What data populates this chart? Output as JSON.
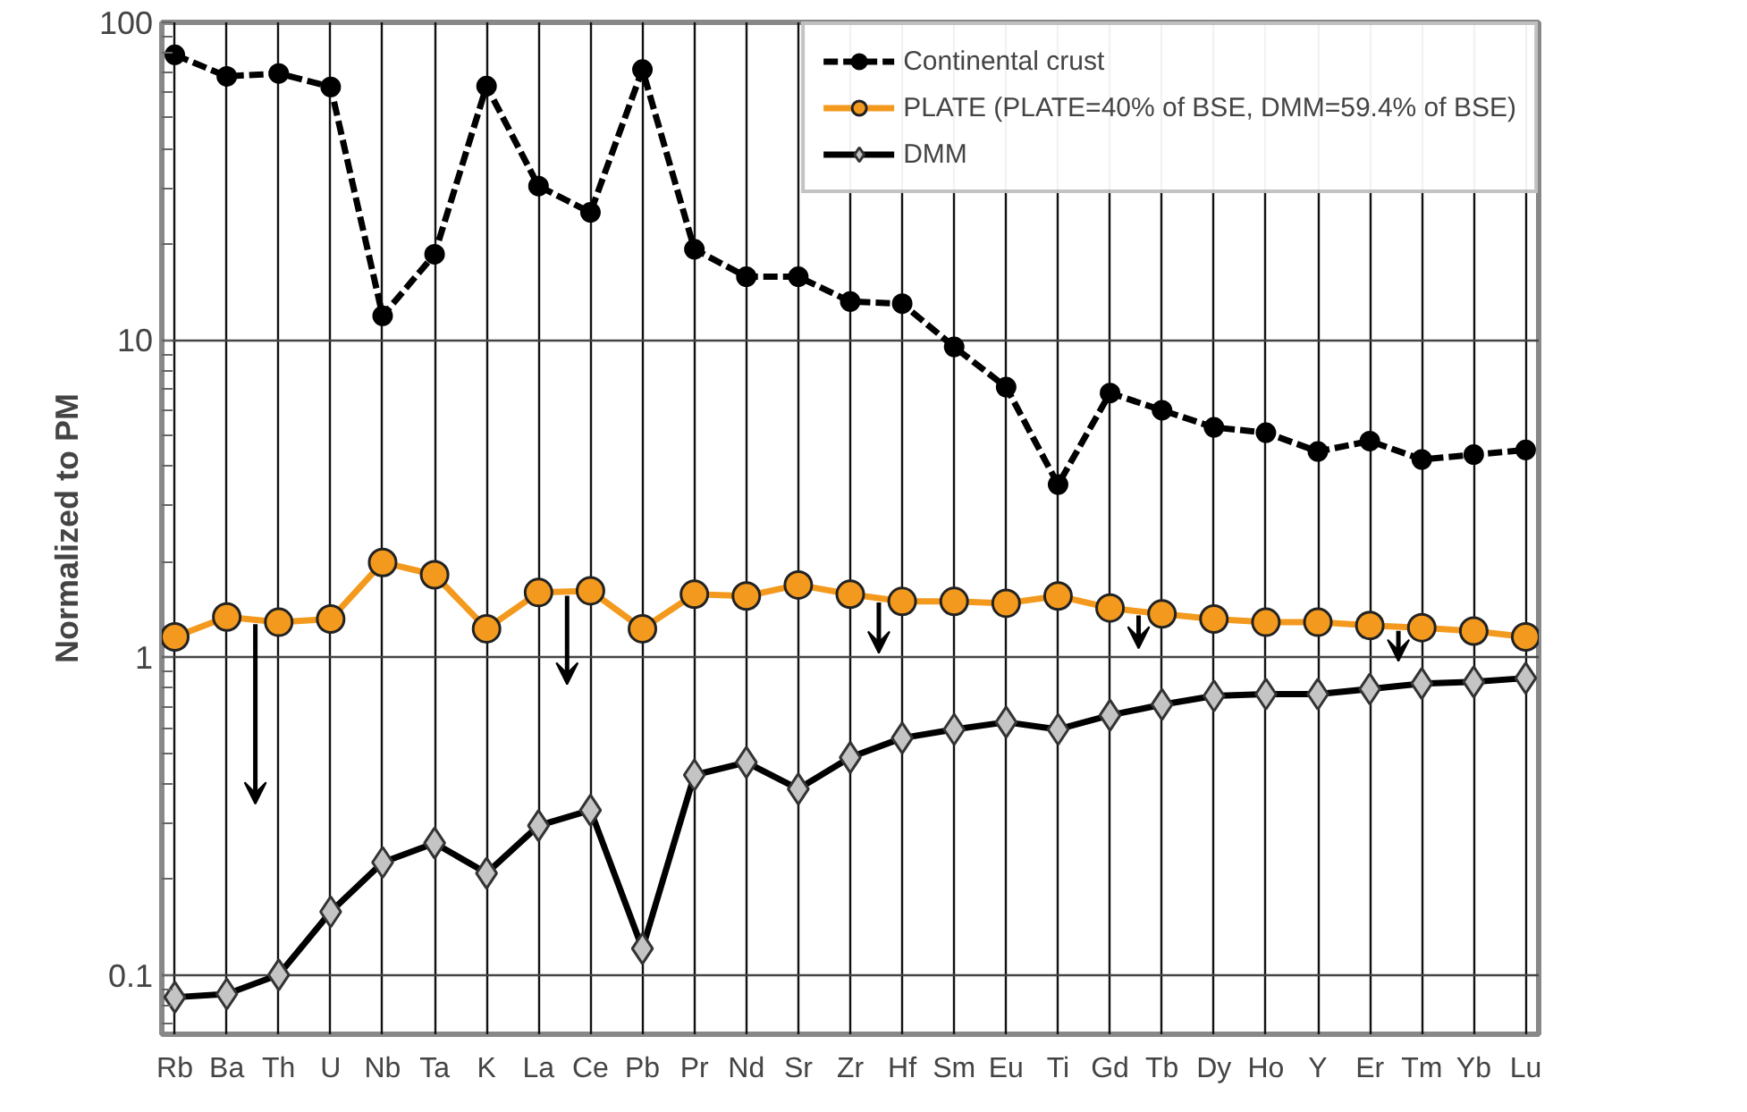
{
  "chart_data": {
    "type": "line",
    "ylabel": "Normalized to PM",
    "categories": [
      "Rb",
      "Ba",
      "Th",
      "U",
      "Nb",
      "Ta",
      "K",
      "La",
      "Ce",
      "Pb",
      "Pr",
      "Nd",
      "Sr",
      "Zr",
      "Hf",
      "Sm",
      "Eu",
      "Ti",
      "Gd",
      "Tb",
      "Dy",
      "Ho",
      "Y",
      "Er",
      "Tm",
      "Yb",
      "Lu"
    ],
    "series": [
      {
        "name": "Continental crust",
        "color": "#000000",
        "marker": "circle",
        "line_style": "dashed",
        "values": [
          79,
          67.6,
          69,
          62.6,
          11.9,
          18.6,
          63,
          30.5,
          25.2,
          71,
          19.3,
          15.8,
          15.8,
          13.2,
          13,
          9.5,
          7.1,
          3.5,
          6.8,
          6.0,
          5.3,
          5.1,
          4.45,
          4.8,
          4.2,
          4.35,
          4.5
        ]
      },
      {
        "name": "PLATE (PLATE=40% of BSE, DMM=59.4% of BSE)",
        "color": "#f39a1e",
        "marker": "circle",
        "line_style": "solid",
        "values": [
          1.16,
          1.34,
          1.29,
          1.32,
          1.99,
          1.82,
          1.23,
          1.6,
          1.62,
          1.23,
          1.58,
          1.56,
          1.69,
          1.58,
          1.5,
          1.5,
          1.48,
          1.56,
          1.43,
          1.37,
          1.32,
          1.29,
          1.29,
          1.26,
          1.24,
          1.21,
          1.16
        ]
      },
      {
        "name": "DMM",
        "color": "#000000",
        "marker": "diamond",
        "line_style": "solid",
        "values": [
          0.085,
          0.087,
          0.1,
          0.158,
          0.226,
          0.26,
          0.209,
          0.295,
          0.33,
          0.121,
          0.426,
          0.467,
          0.385,
          0.484,
          0.557,
          0.593,
          0.625,
          0.593,
          0.657,
          0.71,
          0.756,
          0.766,
          0.766,
          0.795,
          0.827,
          0.837,
          0.86
        ]
      }
    ],
    "log": "y",
    "ylim": [
      0.065,
      100
    ],
    "yticks": [
      0.1,
      1,
      10,
      100
    ],
    "grid": true,
    "legend": "top right"
  }
}
